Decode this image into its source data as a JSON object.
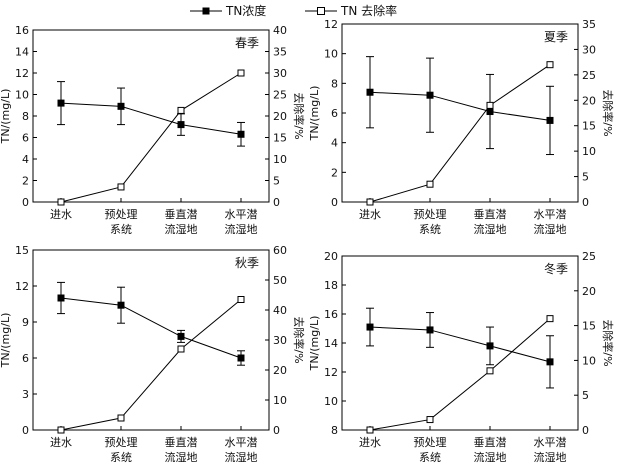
{
  "legend": {
    "series1": "TN浓度",
    "series2": "TN 去除率"
  },
  "chart_data": [
    {
      "type": "line",
      "season": "春季",
      "categories": [
        "进水",
        "预处理系统",
        "垂直潜流湿地",
        "水平潜流湿地"
      ],
      "category_lines": [
        [
          "进水"
        ],
        [
          "预处理",
          "系统"
        ],
        [
          "垂直潜",
          "流湿地"
        ],
        [
          "水平潜",
          "流湿地"
        ]
      ],
      "ylabel_left": "TN/(mg/L)",
      "ylabel_right": "去除率/%",
      "ylim_left": [
        0,
        16
      ],
      "yticks_left": [
        0,
        2,
        4,
        6,
        8,
        10,
        12,
        14,
        16
      ],
      "ylim_right": [
        0,
        40
      ],
      "yticks_right": [
        0,
        5,
        10,
        15,
        20,
        25,
        30,
        35,
        40
      ],
      "series": [
        {
          "name": "TN浓度",
          "axis": "left",
          "values": [
            9.2,
            8.9,
            7.2,
            6.3
          ],
          "err": [
            2.0,
            1.7,
            1.0,
            1.1
          ]
        },
        {
          "name": "TN 去除率",
          "axis": "right",
          "values": [
            0,
            3.5,
            21.3,
            30.0
          ]
        }
      ]
    },
    {
      "type": "line",
      "season": "夏季",
      "categories": [
        "进水",
        "预处理系统",
        "垂直潜流湿地",
        "水平潜流湿地"
      ],
      "category_lines": [
        [
          "进水"
        ],
        [
          "预处理",
          "系统"
        ],
        [
          "垂直潜",
          "流湿地"
        ],
        [
          "水平潜",
          "流湿地"
        ]
      ],
      "ylabel_left": "TN/(mg/L)",
      "ylabel_right": "去除率/%",
      "ylim_left": [
        0,
        12
      ],
      "yticks_left": [
        0,
        2,
        4,
        6,
        8,
        10,
        12
      ],
      "ylim_right": [
        0,
        35
      ],
      "yticks_right": [
        0,
        5,
        10,
        15,
        20,
        25,
        30,
        35
      ],
      "series": [
        {
          "name": "TN浓度",
          "axis": "left",
          "values": [
            7.4,
            7.2,
            6.1,
            5.5
          ],
          "err": [
            2.4,
            2.5,
            2.5,
            2.3
          ]
        },
        {
          "name": "TN 去除率",
          "axis": "right",
          "values": [
            0,
            3.5,
            19.0,
            27.0
          ]
        }
      ]
    },
    {
      "type": "line",
      "season": "秋季",
      "categories": [
        "进水",
        "预处理系统",
        "垂直潜流湿地",
        "水平潜流湿地"
      ],
      "category_lines": [
        [
          "进水"
        ],
        [
          "预处理",
          "系统"
        ],
        [
          "垂直潜",
          "流湿地"
        ],
        [
          "水平潜",
          "流湿地"
        ]
      ],
      "ylabel_left": "TN/(mg/L)",
      "ylabel_right": "去除率/%",
      "ylim_left": [
        0,
        15
      ],
      "yticks_left": [
        0,
        3,
        6,
        9,
        12,
        15
      ],
      "ylim_right": [
        0,
        60
      ],
      "yticks_right": [
        0,
        10,
        20,
        30,
        40,
        50,
        60
      ],
      "series": [
        {
          "name": "TN浓度",
          "axis": "left",
          "values": [
            11.0,
            10.4,
            7.8,
            6.0
          ],
          "err": [
            1.3,
            1.5,
            0.5,
            0.6
          ]
        },
        {
          "name": "TN 去除率",
          "axis": "right",
          "values": [
            0,
            4.0,
            27.0,
            43.5
          ]
        }
      ]
    },
    {
      "type": "line",
      "season": "冬季",
      "categories": [
        "进水",
        "预处理系统",
        "垂直潜流湿地",
        "水平潜流湿地"
      ],
      "category_lines": [
        [
          "进水"
        ],
        [
          "预处理",
          "系统"
        ],
        [
          "垂直潜",
          "流湿地"
        ],
        [
          "水平潜",
          "流湿地"
        ]
      ],
      "ylabel_left": "TN/(mg/L)",
      "ylabel_right": "去除率/%",
      "ylim_left": [
        8,
        20
      ],
      "yticks_left": [
        8,
        10,
        12,
        14,
        16,
        18,
        20
      ],
      "ylim_right": [
        0,
        25
      ],
      "yticks_right": [
        0,
        5,
        10,
        15,
        20,
        25
      ],
      "series": [
        {
          "name": "TN浓度",
          "axis": "left",
          "values": [
            15.1,
            14.9,
            13.8,
            12.7
          ],
          "err": [
            1.3,
            1.2,
            1.3,
            1.8
          ]
        },
        {
          "name": "TN 去除率",
          "axis": "right",
          "values": [
            0,
            1.5,
            8.5,
            16.0
          ]
        }
      ]
    }
  ]
}
